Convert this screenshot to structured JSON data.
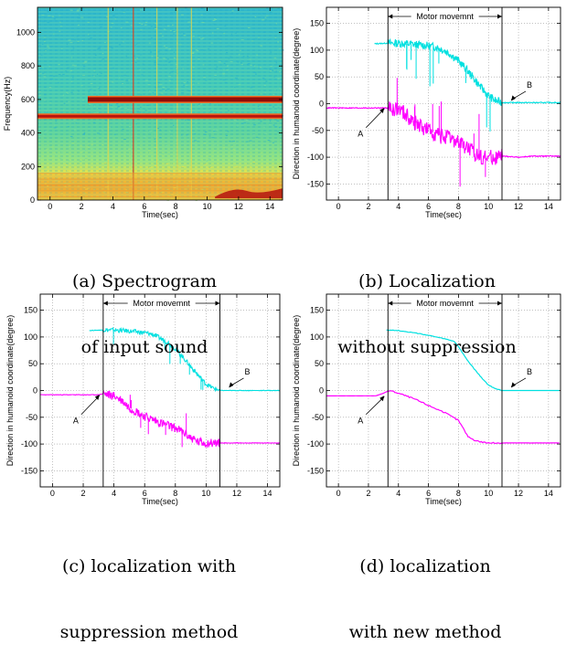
{
  "figure": {
    "captions": [
      {
        "line1": "(a) Spectrogram",
        "line2": "of input sound"
      },
      {
        "line1": "(b) Localization",
        "line2": "without suppression"
      },
      {
        "line1": "(c) localization with",
        "line2": "suppression method"
      },
      {
        "line1": "(d) localization",
        "line2": "with new method"
      }
    ]
  },
  "chart_data": [
    {
      "type": "heatmap",
      "title": "",
      "xlabel": "Time(sec)",
      "ylabel": "Frequency(Hz)",
      "xlim": [
        -0.8,
        14.8
      ],
      "ylim": [
        0,
        1150
      ],
      "xticks": [
        0,
        2,
        4,
        6,
        8,
        10,
        12,
        14
      ],
      "yticks": [
        0,
        200,
        400,
        600,
        800,
        1000
      ],
      "colormap": [
        "#0b1a8c",
        "#1fb3c9",
        "#56d3b0",
        "#e4e84a",
        "#e8312a",
        "#7a0a08"
      ],
      "features": {
        "tone_1_hz": 500,
        "tone_1_start_sec": -0.8,
        "tone_2_hz": 600,
        "tone_2_start_sec": 2.4,
        "low_frequency_noise_start_sec": 10.5
      }
    },
    {
      "type": "line",
      "title": "",
      "xlabel": "Time(sec)",
      "ylabel": "Direction in humanoid coordinate(degree)",
      "xlim": [
        -0.8,
        14.8
      ],
      "ylim": [
        -180,
        180
      ],
      "xticks": [
        0,
        2,
        4,
        6,
        8,
        10,
        12,
        14
      ],
      "yticks": [
        -150,
        -100,
        -50,
        0,
        50,
        100,
        150
      ],
      "grid": true,
      "motor_label": "Motor movemnt",
      "motor_start": 3.3,
      "motor_end": 10.9,
      "label_A": "A",
      "label_B": "B",
      "noise": 25,
      "series": [
        {
          "color": "#00e0e0",
          "x": [
            2.4,
            3.3,
            4.0,
            5.0,
            6.0,
            6.5,
            7.0,
            7.5,
            8.0,
            8.5,
            9.0,
            9.5,
            10.0,
            10.5,
            11.0,
            12.0,
            13.0,
            14.8
          ],
          "y": [
            112,
            113,
            113,
            111,
            108,
            106,
            100,
            92,
            80,
            65,
            48,
            30,
            15,
            5,
            2,
            2,
            2,
            2
          ]
        },
        {
          "color": "#ff00ff",
          "x": [
            -0.8,
            1.0,
            2.0,
            3.0,
            3.3,
            4.0,
            4.5,
            5.0,
            6.0,
            7.0,
            8.0,
            8.5,
            9.0,
            9.5,
            10.0,
            10.5,
            11.0,
            12.0,
            13.0,
            14.8
          ],
          "y": [
            -8,
            -8,
            -8,
            -8,
            -8,
            -10,
            -20,
            -35,
            -50,
            -62,
            -72,
            -80,
            -92,
            -98,
            -100,
            -100,
            -98,
            -100,
            -98,
            -98
          ]
        }
      ]
    },
    {
      "type": "line",
      "title": "",
      "xlabel": "Time(sec)",
      "ylabel": "Direction in humanoid coordinate(degree)",
      "xlim": [
        -0.8,
        14.8
      ],
      "ylim": [
        -180,
        180
      ],
      "xticks": [
        0,
        2,
        4,
        6,
        8,
        10,
        12,
        14
      ],
      "yticks": [
        -150,
        -100,
        -50,
        0,
        50,
        100,
        150
      ],
      "grid": true,
      "motor_label": "Motor movemnt",
      "motor_start": 3.3,
      "motor_end": 10.9,
      "label_A": "A",
      "label_B": "B",
      "noise": 14,
      "series": [
        {
          "color": "#00e0e0",
          "x": [
            2.4,
            3.3,
            4.0,
            5.0,
            6.0,
            6.5,
            7.0,
            7.5,
            8.0,
            8.5,
            9.0,
            9.5,
            10.0,
            10.5,
            11.0,
            12.0,
            13.0,
            14.8
          ],
          "y": [
            112,
            113,
            113,
            111,
            108,
            105,
            98,
            90,
            78,
            62,
            45,
            28,
            12,
            4,
            0,
            0,
            0,
            0
          ]
        },
        {
          "color": "#ff00ff",
          "x": [
            -0.8,
            1.0,
            2.0,
            3.0,
            3.3,
            4.0,
            4.5,
            5.0,
            6.0,
            7.0,
            8.0,
            8.5,
            9.0,
            9.5,
            10.0,
            10.5,
            11.0,
            12.0,
            13.0,
            14.8
          ],
          "y": [
            -8,
            -8,
            -8,
            -8,
            -6,
            -10,
            -18,
            -32,
            -48,
            -60,
            -70,
            -78,
            -88,
            -96,
            -98,
            -98,
            -98,
            -98,
            -98,
            -98
          ]
        }
      ]
    },
    {
      "type": "line",
      "title": "",
      "xlabel": "Time(sec)",
      "ylabel": "Direction in humanoid coordinate(degree)",
      "xlim": [
        -0.8,
        14.8
      ],
      "ylim": [
        -180,
        180
      ],
      "xticks": [
        0,
        2,
        4,
        6,
        8,
        10,
        12,
        14
      ],
      "yticks": [
        -150,
        -100,
        -50,
        0,
        50,
        100,
        150
      ],
      "grid": true,
      "motor_label": "Motor movemnt",
      "motor_start": 3.3,
      "motor_end": 10.9,
      "label_A": "A",
      "label_B": "B",
      "noise": 2,
      "series": [
        {
          "color": "#00e0e0",
          "x": [
            3.2,
            4.0,
            5.0,
            6.0,
            7.0,
            7.7,
            8.0,
            8.5,
            9.0,
            9.5,
            10.0,
            10.5,
            10.9,
            12.0,
            13.0,
            14.8
          ],
          "y": [
            113,
            112,
            108,
            103,
            97,
            92,
            82,
            60,
            42,
            25,
            10,
            3,
            0,
            0,
            0,
            0
          ]
        },
        {
          "color": "#ff00ff",
          "x": [
            -0.8,
            1.0,
            2.0,
            2.5,
            3.0,
            3.4,
            4.0,
            5.0,
            6.0,
            7.0,
            7.5,
            8.0,
            8.3,
            8.6,
            9.0,
            9.5,
            10.0,
            11.0,
            12.0,
            13.0,
            14.8
          ],
          "y": [
            -10,
            -10,
            -10,
            -10,
            -5,
            0,
            -5,
            -15,
            -28,
            -40,
            -48,
            -56,
            -70,
            -85,
            -92,
            -96,
            -98,
            -98,
            -98,
            -98,
            -98
          ]
        }
      ]
    }
  ]
}
